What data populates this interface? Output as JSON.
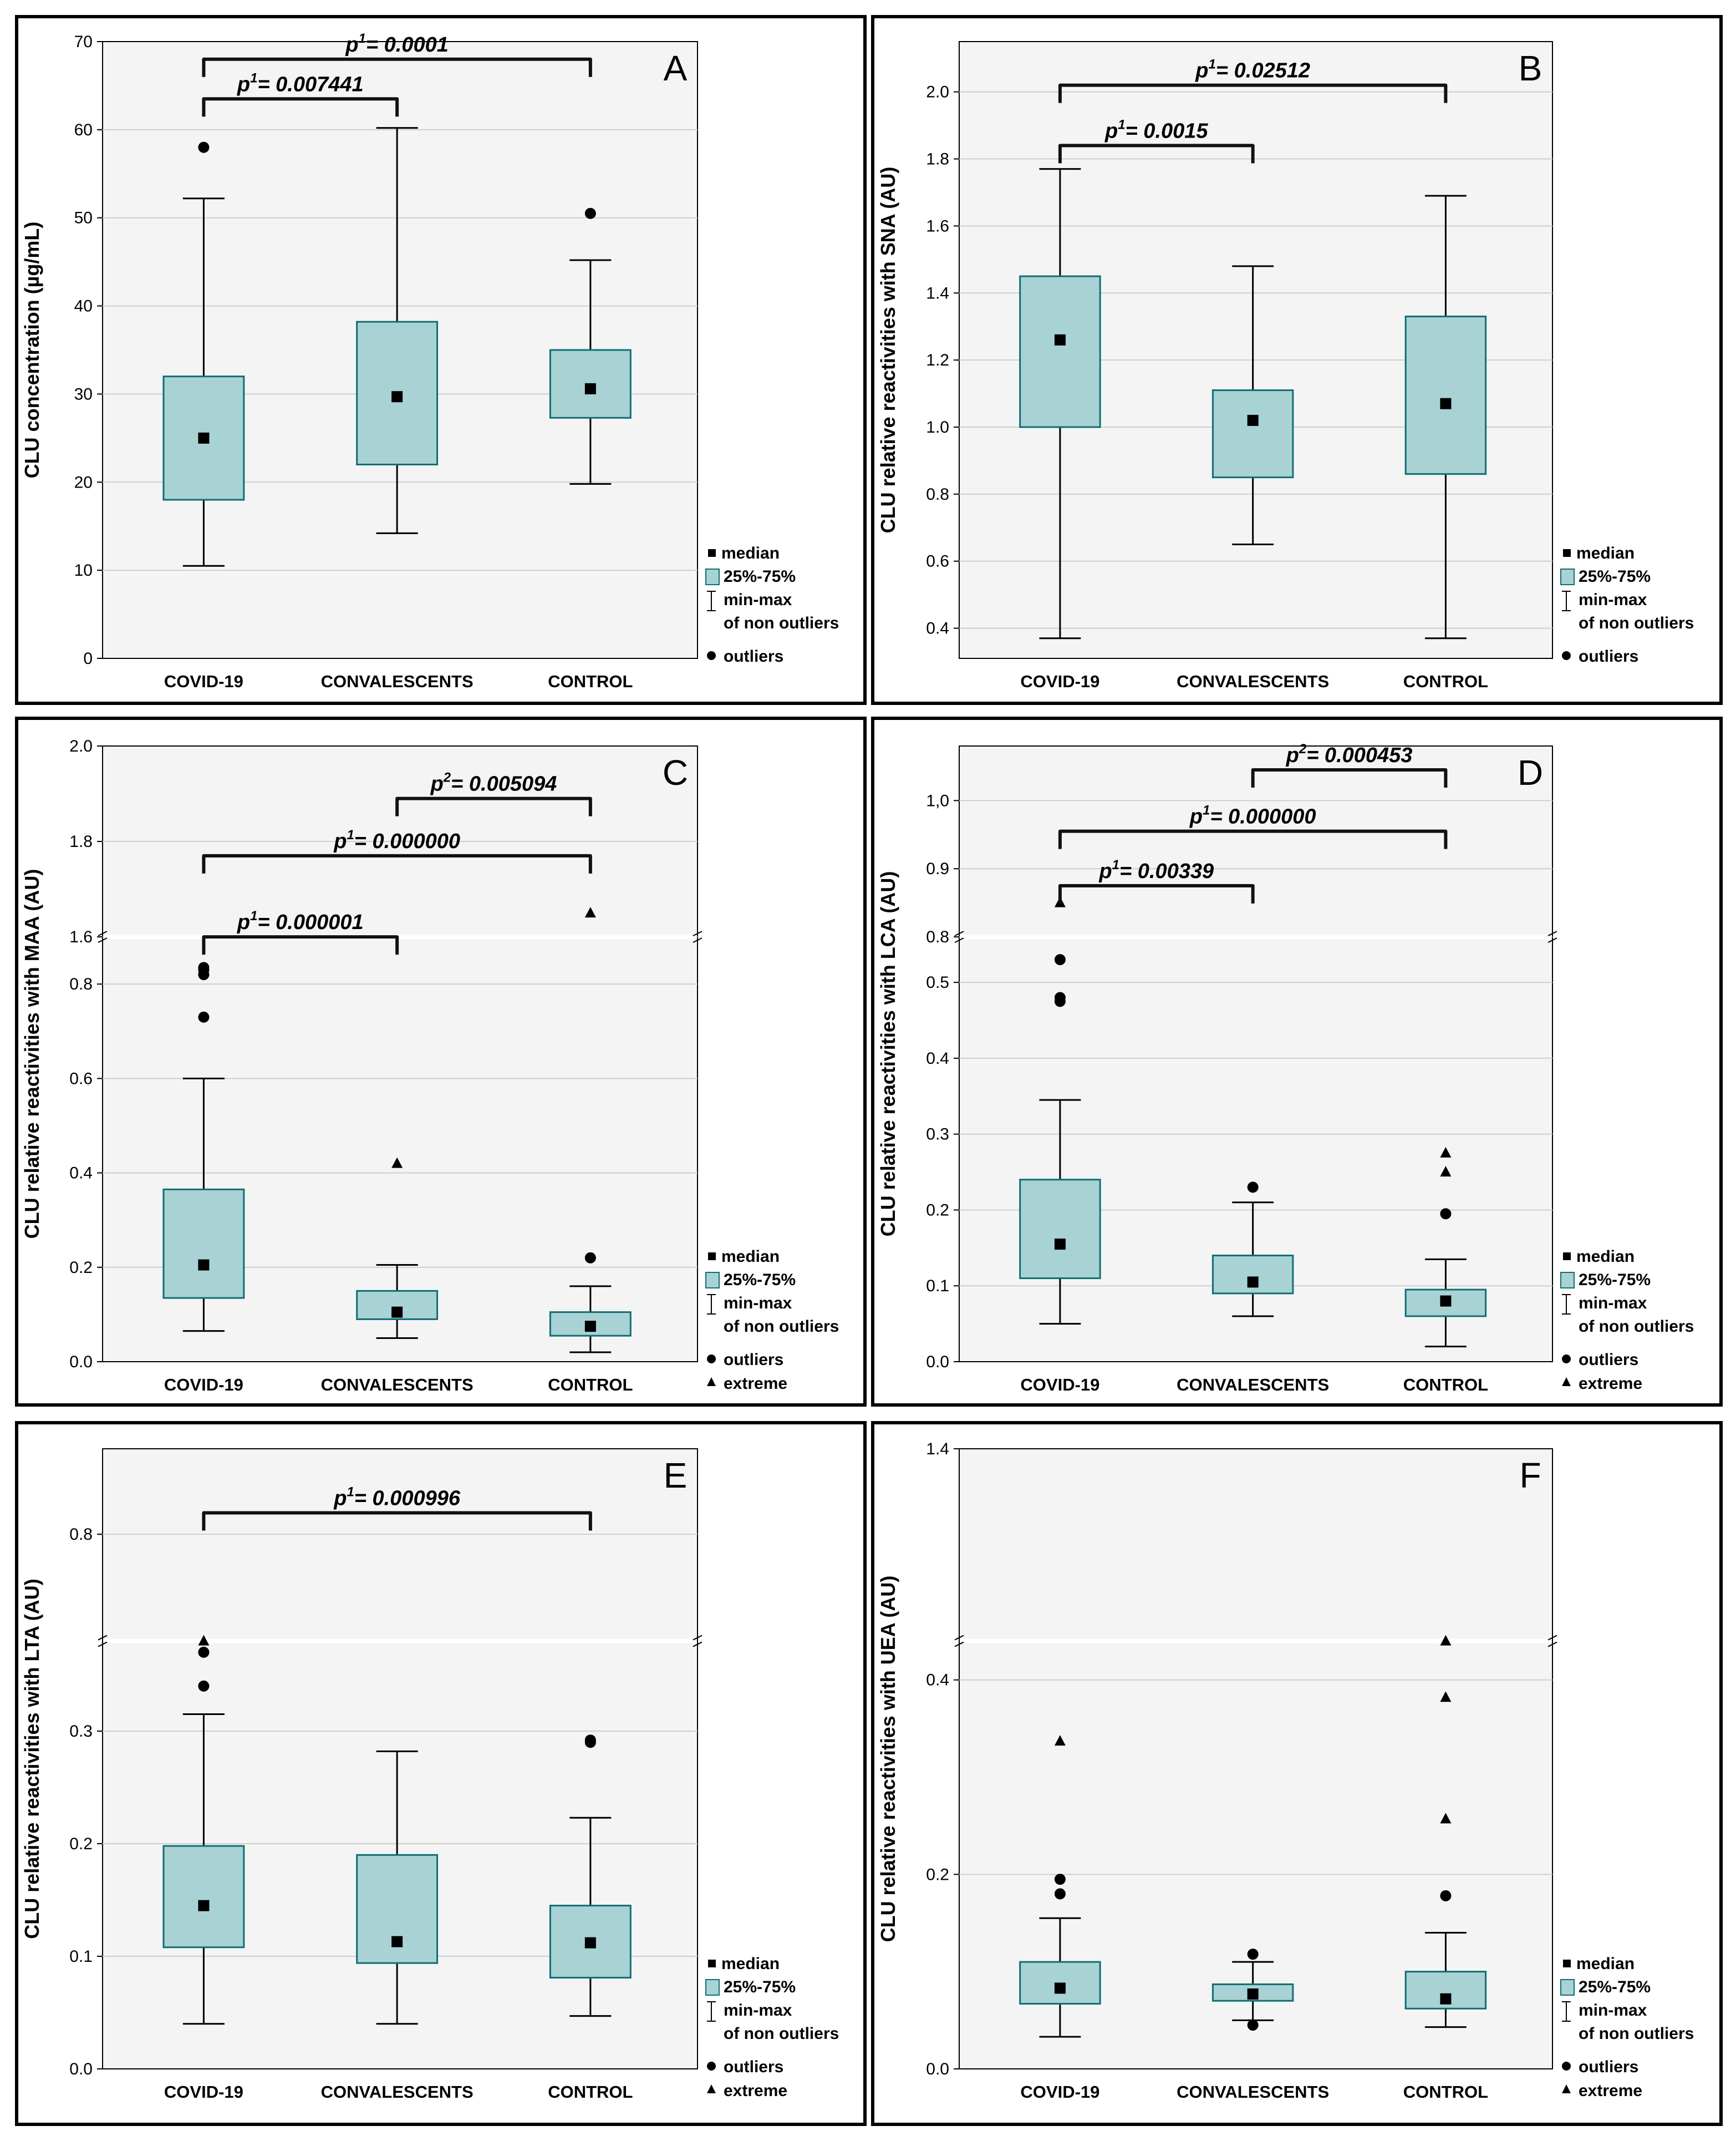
{
  "figure": {
    "categories": [
      "COVID-19",
      "CONVALESCENTS",
      "CONTROL"
    ],
    "legend": {
      "median": "median",
      "iqr": "25%-75%",
      "whisker_line1": "min-max",
      "whisker_line2": "of non outliers",
      "outliers": "outliers",
      "extreme": "extreme"
    },
    "colors": {
      "box_fill": "#a9d2d4",
      "box_stroke": "#0f6e74",
      "plot_bg": "#f4f4f4",
      "grid": "#cfcfcf",
      "bracket": "#111111"
    }
  },
  "chart_data": [
    {
      "panel": "A",
      "type": "box",
      "ylabel": "CLU concentration (µg/mL)",
      "yticks": [
        "0",
        "10",
        "20",
        "30",
        "40",
        "50",
        "60",
        "70"
      ],
      "ylim": [
        0,
        70
      ],
      "legend_extreme": false,
      "boxes": [
        {
          "category": "COVID-19",
          "min": 10.5,
          "q1": 18,
          "median": 25,
          "q3": 32,
          "max": 52.2,
          "outliers": [
            58
          ],
          "extremes": []
        },
        {
          "category": "CONVALESCENTS",
          "min": 14.2,
          "q1": 22,
          "median": 29.7,
          "q3": 38.2,
          "max": 60.2,
          "outliers": [],
          "extremes": []
        },
        {
          "category": "CONTROL",
          "min": 19.8,
          "q1": 27.3,
          "median": 30.6,
          "q3": 35,
          "max": 45.2,
          "outliers": [
            50.5
          ],
          "extremes": []
        }
      ],
      "brackets": [
        {
          "from": 0,
          "to": 1,
          "y": 63.5,
          "sup": "1",
          "value": "0.007441"
        },
        {
          "from": 0,
          "to": 2,
          "y": 68,
          "sup": "1",
          "value": "0.0001"
        }
      ]
    },
    {
      "panel": "B",
      "type": "box",
      "ylabel": "CLU relative reactivities with SNA (AU)",
      "yticks": [
        "0.4",
        "0.6",
        "0.8",
        "1.0",
        "1.2",
        "1.4",
        "1.6",
        "1.8",
        "2.0"
      ],
      "ylim": [
        0.31,
        2.15
      ],
      "legend_extreme": false,
      "boxes": [
        {
          "category": "COVID-19",
          "min": 0.37,
          "q1": 1.0,
          "median": 1.26,
          "q3": 1.45,
          "max": 1.77,
          "outliers": [],
          "extremes": []
        },
        {
          "category": "CONVALESCENTS",
          "min": 0.65,
          "q1": 0.85,
          "median": 1.02,
          "q3": 1.11,
          "max": 1.48,
          "outliers": [],
          "extremes": []
        },
        {
          "category": "CONTROL",
          "min": 0.37,
          "q1": 0.86,
          "median": 1.07,
          "q3": 1.33,
          "max": 1.69,
          "outliers": [],
          "extremes": []
        }
      ],
      "brackets": [
        {
          "from": 0,
          "to": 1,
          "y": 1.84,
          "sup": "1",
          "value": "0.0015"
        },
        {
          "from": 0,
          "to": 2,
          "y": 2.02,
          "sup": "1",
          "value": "0.02512"
        }
      ]
    },
    {
      "panel": "C",
      "type": "box",
      "ylabel": "CLU relative reactivities with MAA (AU)",
      "yticks": [
        "0.0",
        "0.2",
        "0.4",
        "0.6",
        "0.8",
        "1.6",
        "1.8",
        "2.0"
      ],
      "ylim": [
        0,
        2.0
      ],
      "axis_break": {
        "low": 0.9,
        "high": 1.6
      },
      "legend_extreme": true,
      "boxes": [
        {
          "category": "COVID-19",
          "min": 0.065,
          "q1": 0.135,
          "median": 0.205,
          "q3": 0.365,
          "max": 0.6,
          "outliers": [
            0.73,
            0.82,
            0.83,
            0.835
          ],
          "extremes": []
        },
        {
          "category": "CONVALESCENTS",
          "min": 0.05,
          "q1": 0.09,
          "median": 0.105,
          "q3": 0.15,
          "max": 0.205,
          "outliers": [],
          "extremes": [
            0.42
          ]
        },
        {
          "category": "CONTROL",
          "min": 0.02,
          "q1": 0.055,
          "median": 0.075,
          "q3": 0.105,
          "max": 0.16,
          "outliers": [
            0.22
          ],
          "extremes": [
            1.65
          ]
        }
      ],
      "brackets": [
        {
          "from": 0,
          "to": 1,
          "y": 1.6,
          "sup": "1",
          "value": "0.000001"
        },
        {
          "from": 0,
          "to": 2,
          "y": 1.77,
          "sup": "1",
          "value": "0.000000"
        },
        {
          "from": 1,
          "to": 2,
          "y": 1.89,
          "sup": "2",
          "value": "0.005094"
        }
      ]
    },
    {
      "panel": "D",
      "type": "box",
      "ylabel": "CLU relative reactivities with LCA (AU)",
      "yticks": [
        "0.0",
        "0.1",
        "0.2",
        "0.3",
        "0.4",
        "0.5",
        "0.8",
        "0.9",
        "1,0"
      ],
      "ylim": [
        0,
        1.08
      ],
      "axis_break": {
        "low": 0.56,
        "high": 0.8
      },
      "legend_extreme": true,
      "boxes": [
        {
          "category": "COVID-19",
          "min": 0.05,
          "q1": 0.11,
          "median": 0.155,
          "q3": 0.24,
          "max": 0.345,
          "outliers": [
            0.475,
            0.48,
            0.53
          ],
          "extremes": [
            0.85
          ]
        },
        {
          "category": "CONVALESCENTS",
          "min": 0.06,
          "q1": 0.09,
          "median": 0.105,
          "q3": 0.14,
          "max": 0.21,
          "outliers": [
            0.23
          ],
          "extremes": []
        },
        {
          "category": "CONTROL",
          "min": 0.02,
          "q1": 0.06,
          "median": 0.08,
          "q3": 0.095,
          "max": 0.135,
          "outliers": [
            0.195
          ],
          "extremes": [
            0.25,
            0.275
          ]
        }
      ],
      "brackets": [
        {
          "from": 0,
          "to": 1,
          "y": 0.875,
          "sup": "1",
          "value": "0.00339"
        },
        {
          "from": 0,
          "to": 2,
          "y": 0.955,
          "sup": "1",
          "value": "0.000000"
        },
        {
          "from": 1,
          "to": 2,
          "y": 1.045,
          "sup": "2",
          "value": "0.000453"
        }
      ]
    },
    {
      "panel": "E",
      "type": "box",
      "ylabel": "CLU relative reactivities with LTA (AU)",
      "yticks": [
        "0.0",
        "0.1",
        "0.2",
        "0.3",
        "0.8"
      ],
      "ylim": [
        0,
        0.84
      ],
      "axis_break": {
        "low": 0.38,
        "high": 0.75
      },
      "legend_extreme": true,
      "boxes": [
        {
          "category": "COVID-19",
          "min": 0.04,
          "q1": 0.108,
          "median": 0.145,
          "q3": 0.198,
          "max": 0.315,
          "outliers": [
            0.34,
            0.37
          ],
          "extremes": [
            0.38
          ]
        },
        {
          "category": "CONVALESCENTS",
          "min": 0.04,
          "q1": 0.094,
          "median": 0.113,
          "q3": 0.19,
          "max": 0.282,
          "outliers": [],
          "extremes": []
        },
        {
          "category": "CONTROL",
          "min": 0.047,
          "q1": 0.081,
          "median": 0.112,
          "q3": 0.145,
          "max": 0.223,
          "outliers": [
            0.29,
            0.292
          ],
          "extremes": []
        }
      ],
      "brackets": [
        {
          "from": 0,
          "to": 2,
          "y": 0.81,
          "sup": "1",
          "value": "0.000996"
        }
      ]
    },
    {
      "panel": "F",
      "type": "box",
      "ylabel": "CLU relative reactivities with UEA (AU)",
      "yticks": [
        "0.0",
        "0.2",
        "0.4",
        "1.4"
      ],
      "ylim": [
        0,
        1.4
      ],
      "axis_break": {
        "low": 0.44,
        "high": 1.0
      },
      "legend_extreme": true,
      "boxes": [
        {
          "category": "COVID-19",
          "min": 0.033,
          "q1": 0.067,
          "median": 0.083,
          "q3": 0.11,
          "max": 0.155,
          "outliers": [
            0.18,
            0.195
          ],
          "extremes": [
            0.337
          ]
        },
        {
          "category": "CONVALESCENTS",
          "min": 0.05,
          "q1": 0.07,
          "median": 0.077,
          "q3": 0.087,
          "max": 0.11,
          "outliers": [
            0.045,
            0.118
          ],
          "extremes": []
        },
        {
          "category": "CONTROL",
          "min": 0.043,
          "q1": 0.062,
          "median": 0.072,
          "q3": 0.1,
          "max": 0.14,
          "outliers": [
            0.178
          ],
          "extremes": [
            0.257,
            0.382,
            0.44
          ]
        }
      ],
      "brackets": []
    }
  ]
}
